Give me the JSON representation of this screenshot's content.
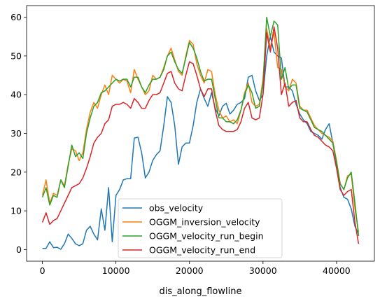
{
  "chart_data": {
    "type": "line",
    "title": "",
    "xlabel": "dis_along_flowline",
    "ylabel": "",
    "xlim": [
      -2150,
      45150
    ],
    "ylim": [
      -3,
      63
    ],
    "xticks": [
      0,
      10000,
      20000,
      30000,
      40000
    ],
    "yticks": [
      0,
      10,
      20,
      30,
      40,
      50,
      60
    ],
    "grid": false,
    "legend_position": "lower center",
    "series": [
      {
        "name": "obs_velocity",
        "color": "#1f77b4",
        "x": [
          0,
          500,
          1000,
          1500,
          2000,
          2500,
          3000,
          3500,
          4000,
          4500,
          5000,
          5500,
          6000,
          6500,
          7000,
          7500,
          8000,
          8500,
          9000,
          9500,
          10000,
          10500,
          11000,
          11500,
          12000,
          12500,
          13000,
          13500,
          14000,
          14500,
          15000,
          15500,
          16000,
          16500,
          17000,
          17500,
          18000,
          18500,
          19000,
          19500,
          20000,
          20500,
          21000,
          21500,
          22000,
          22500,
          23000,
          23500,
          24000,
          24500,
          25000,
          25500,
          26000,
          26500,
          27000,
          27500,
          28000,
          28500,
          29000,
          29500,
          30000,
          30500,
          31000,
          31500,
          32000,
          32500,
          33000,
          33500,
          34000,
          34500,
          35000,
          35500,
          36000,
          36500,
          37000,
          37500,
          38000,
          38500,
          39000,
          39500,
          40000,
          40500,
          41000,
          41500,
          42000,
          42500,
          43000
        ],
        "y": [
          0.3,
          0.3,
          2.0,
          0.5,
          0.6,
          0.1,
          1.5,
          4.0,
          2.9,
          1.5,
          1.0,
          1.5,
          5.0,
          6.0,
          4.0,
          2.5,
          10.5,
          5.0,
          16.0,
          2.0,
          14.0,
          15.5,
          18.0,
          18.3,
          18.3,
          28.8,
          29.0,
          25.0,
          18.5,
          20.0,
          23.0,
          24.5,
          25.5,
          32.0,
          39.5,
          38.0,
          32.0,
          22.0,
          26.5,
          27.5,
          27.5,
          32.0,
          38.0,
          41.5,
          39.0,
          37.0,
          40.5,
          36.5,
          34.5,
          37.0,
          37.8,
          35.0,
          36.0,
          37.5,
          38.0,
          39.0,
          44.5,
          45.0,
          41.0,
          38.5,
          40.0,
          50.0,
          55.0,
          51.0,
          50.0,
          49.5,
          42.0,
          42.0,
          41.0,
          37.5,
          35.0,
          33.5,
          32.5,
          30.5,
          30.0,
          29.5,
          28.5,
          31.0,
          32.5,
          27.5,
          22.0,
          16.0,
          13.5,
          13.0,
          10.5,
          6.0,
          4.0
        ]
      },
      {
        "name": "OGGM_inversion_velocity",
        "color": "#ff7f0e",
        "x": [
          0,
          500,
          1000,
          1500,
          2000,
          2500,
          3000,
          3500,
          4000,
          4500,
          5000,
          5500,
          6000,
          6500,
          7000,
          7500,
          8000,
          8500,
          9000,
          9500,
          10000,
          10500,
          11000,
          11500,
          12000,
          12500,
          13000,
          13500,
          14000,
          14500,
          15000,
          15500,
          16000,
          16500,
          17000,
          17500,
          18000,
          18500,
          19000,
          19500,
          20000,
          20500,
          21000,
          21500,
          22000,
          22500,
          23000,
          23500,
          24000,
          24500,
          25000,
          25500,
          26000,
          26500,
          27000,
          27500,
          28000,
          28500,
          29000,
          29500,
          30000,
          30500,
          31000,
          31500,
          32000,
          32500,
          33000,
          33500,
          34000,
          34500,
          35000,
          35500,
          36000,
          36500,
          37000,
          37500,
          38000,
          38500,
          39000,
          39500,
          40000,
          40500,
          41000,
          41500,
          42000,
          42500,
          43000
        ],
        "y": [
          14.0,
          18.0,
          12.0,
          14.5,
          14.0,
          18.0,
          16.5,
          22.0,
          26.0,
          25.5,
          23.0,
          25.0,
          31.0,
          35.5,
          38.0,
          36.5,
          40.0,
          42.5,
          40.0,
          45.0,
          44.0,
          43.0,
          44.0,
          43.5,
          40.5,
          46.5,
          44.0,
          42.0,
          40.0,
          41.0,
          45.0,
          44.0,
          44.5,
          47.0,
          50.0,
          52.0,
          49.0,
          46.0,
          45.0,
          50.0,
          54.0,
          53.0,
          48.0,
          45.0,
          43.0,
          46.5,
          46.0,
          40.0,
          36.0,
          34.0,
          34.5,
          33.0,
          33.5,
          32.5,
          36.0,
          40.5,
          43.0,
          38.0,
          37.0,
          37.5,
          44.0,
          57.0,
          52.0,
          56.0,
          47.0,
          46.5,
          42.0,
          41.0,
          44.0,
          43.0,
          37.0,
          36.0,
          36.0,
          34.0,
          32.0,
          31.0,
          30.0,
          29.5,
          29.0,
          28.0,
          23.0,
          17.0,
          15.5,
          19.0,
          19.5,
          10.5,
          4.5
        ]
      },
      {
        "name": "OGGM_velocity_run_begin",
        "color": "#2ca02c",
        "x": [
          0,
          500,
          1000,
          1500,
          2000,
          2500,
          3000,
          3500,
          4000,
          4500,
          5000,
          5500,
          6000,
          6500,
          7000,
          7500,
          8000,
          8500,
          9000,
          9500,
          10000,
          10500,
          11000,
          11500,
          12000,
          12500,
          13000,
          13500,
          14000,
          14500,
          15000,
          15500,
          16000,
          16500,
          17000,
          17500,
          18000,
          18500,
          19000,
          19500,
          20000,
          20500,
          21000,
          21500,
          22000,
          22500,
          23000,
          23500,
          24000,
          24500,
          25000,
          25500,
          26000,
          26500,
          27000,
          27500,
          28000,
          28500,
          29000,
          29500,
          30000,
          30500,
          31000,
          31500,
          32000,
          32500,
          33000,
          33500,
          34000,
          34500,
          35000,
          35500,
          36000,
          36500,
          37000,
          37500,
          38000,
          38500,
          39000,
          39500,
          40000,
          40500,
          41000,
          41500,
          42000,
          42500,
          43000
        ],
        "y": [
          13.5,
          16.0,
          11.5,
          14.0,
          13.5,
          18.0,
          16.0,
          21.5,
          27.0,
          24.0,
          25.0,
          23.5,
          30.0,
          34.0,
          37.0,
          38.0,
          40.5,
          41.0,
          42.0,
          43.0,
          44.0,
          43.5,
          44.0,
          44.0,
          42.0,
          44.5,
          44.5,
          42.0,
          40.5,
          42.5,
          44.0,
          44.0,
          44.5,
          46.5,
          50.0,
          51.0,
          48.5,
          46.5,
          45.5,
          49.5,
          53.5,
          52.0,
          49.5,
          46.0,
          43.5,
          44.0,
          44.0,
          39.0,
          34.0,
          34.0,
          33.0,
          33.0,
          32.5,
          33.5,
          36.0,
          40.0,
          42.5,
          40.5,
          36.5,
          37.0,
          43.0,
          60.0,
          55.0,
          59.0,
          58.0,
          44.0,
          47.0,
          41.5,
          42.5,
          42.5,
          36.5,
          36.0,
          35.5,
          33.5,
          31.5,
          31.0,
          30.5,
          29.5,
          28.5,
          27.5,
          22.5,
          17.0,
          15.5,
          18.5,
          20.0,
          12.0,
          3.5
        ]
      },
      {
        "name": "OGGM_velocity_run_end",
        "color": "#d62728",
        "x": [
          0,
          500,
          1000,
          1500,
          2000,
          2500,
          3000,
          3500,
          4000,
          4500,
          5000,
          5500,
          6000,
          6500,
          7000,
          7500,
          8000,
          8500,
          9000,
          9500,
          10000,
          10500,
          11000,
          11500,
          12000,
          12500,
          13000,
          13500,
          14000,
          14500,
          15000,
          15500,
          16000,
          16500,
          17000,
          17500,
          18000,
          18500,
          19000,
          19500,
          20000,
          20500,
          21000,
          21500,
          22000,
          22500,
          23000,
          23500,
          24000,
          24500,
          25000,
          25500,
          26000,
          26500,
          27000,
          27500,
          28000,
          28500,
          29000,
          29500,
          30000,
          30500,
          31000,
          31500,
          32000,
          32500,
          33000,
          33500,
          34000,
          34500,
          35000,
          35500,
          36000,
          36500,
          37000,
          37500,
          38000,
          38500,
          39000,
          39500,
          40000,
          40500,
          41000,
          41500,
          42000,
          42500,
          43000
        ],
        "y": [
          7.0,
          9.5,
          6.5,
          7.5,
          8.0,
          10.0,
          12.0,
          14.0,
          16.0,
          16.5,
          17.0,
          18.5,
          21.0,
          24.0,
          27.5,
          29.0,
          30.0,
          32.5,
          33.5,
          37.0,
          37.5,
          37.5,
          38.0,
          37.5,
          36.5,
          39.0,
          38.0,
          36.5,
          36.5,
          38.5,
          40.0,
          40.0,
          40.5,
          43.0,
          45.5,
          46.0,
          43.0,
          41.5,
          41.0,
          45.0,
          48.5,
          48.0,
          45.0,
          41.5,
          39.5,
          41.5,
          41.5,
          36.0,
          32.0,
          31.0,
          30.5,
          30.5,
          30.5,
          31.0,
          33.0,
          36.5,
          38.0,
          34.0,
          33.5,
          34.0,
          40.0,
          56.0,
          51.0,
          57.5,
          52.0,
          40.0,
          43.0,
          37.0,
          38.0,
          38.5,
          34.0,
          33.0,
          33.0,
          31.0,
          29.5,
          29.0,
          28.0,
          27.0,
          26.5,
          25.5,
          21.0,
          15.5,
          14.0,
          15.0,
          15.5,
          7.0,
          1.5
        ]
      }
    ]
  }
}
